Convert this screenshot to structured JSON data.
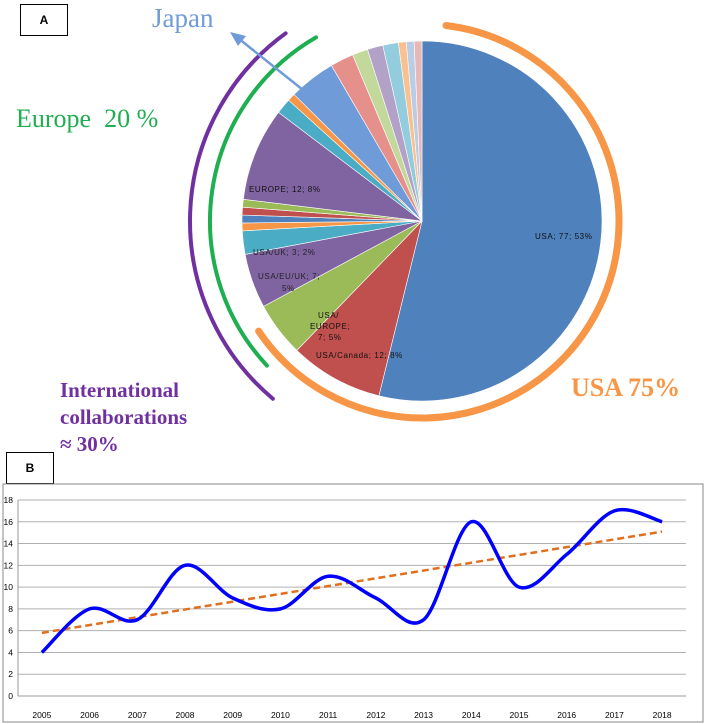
{
  "panels": {
    "a_label": "A",
    "b_label": "B"
  },
  "annotations": {
    "japan": "Japan",
    "europe": "Europe  20 %",
    "international_line1": "International",
    "international_line2": "collaborations",
    "international_line3": "≈ 30%",
    "usa": "USA 75%"
  },
  "colors": {
    "japan": "#6f9bd8",
    "europe": "#1fae50",
    "international": "#7030a0",
    "usa": "#f79646",
    "line": "#0000ff",
    "trend": "#e07020"
  },
  "chart_data": [
    {
      "type": "pie",
      "slices": [
        {
          "label": "USA; 77; 53%",
          "value": 77,
          "color": "#4f81bd"
        },
        {
          "label": "USA/Canada; 12; 8%",
          "value": 12,
          "color": "#c0504d"
        },
        {
          "label": "USA/ EUROPE; 7; 5%",
          "value": 7,
          "color": "#9bbb59"
        },
        {
          "label": "USA/EU/UK; 7; 5%",
          "value": 7,
          "color": "#8064a2"
        },
        {
          "label": "USA/UK; 3; 2%",
          "value": 3,
          "color": "#4bacc6"
        },
        {
          "label": "",
          "value": 1,
          "color": "#f79646"
        },
        {
          "label": "",
          "value": 1,
          "color": "#4f81bd"
        },
        {
          "label": "",
          "value": 1,
          "color": "#c0504d"
        },
        {
          "label": "",
          "value": 1,
          "color": "#9bbb59"
        },
        {
          "label": "EUROPE; 12; 8%",
          "value": 12,
          "color": "#8064a2"
        },
        {
          "label": "",
          "value": 2,
          "color": "#4bacc6"
        },
        {
          "label": "",
          "value": 1,
          "color": "#f79646"
        },
        {
          "label": "",
          "value": 6,
          "color": "#6f9bd8"
        },
        {
          "label": "",
          "value": 3,
          "color": "#e6908c"
        },
        {
          "label": "",
          "value": 2,
          "color": "#c3d89b"
        },
        {
          "label": "",
          "value": 2,
          "color": "#b3a2c7"
        },
        {
          "label": "",
          "value": 2,
          "color": "#93cddd"
        },
        {
          "label": "",
          "value": 1,
          "color": "#fac090"
        },
        {
          "label": "",
          "value": 1,
          "color": "#b9cde5"
        },
        {
          "label": "",
          "value": 1,
          "color": "#e6b9b8"
        }
      ]
    },
    {
      "type": "line",
      "x": [
        "2005",
        "2006",
        "2007",
        "2008",
        "2009",
        "2010",
        "2011",
        "2012",
        "2013",
        "2014",
        "2015",
        "2016",
        "2017",
        "2018"
      ],
      "series": [
        {
          "values": [
            4,
            8,
            7,
            12,
            9,
            8,
            11,
            9,
            7,
            16,
            10,
            13,
            17,
            16
          ]
        }
      ],
      "trendline": {
        "start": 5.8,
        "end": 15.1,
        "style": "dashed"
      },
      "ylim": [
        0,
        18
      ],
      "yticks": [
        0,
        2,
        4,
        6,
        8,
        10,
        12,
        14,
        16,
        18
      ],
      "grid": true
    }
  ]
}
